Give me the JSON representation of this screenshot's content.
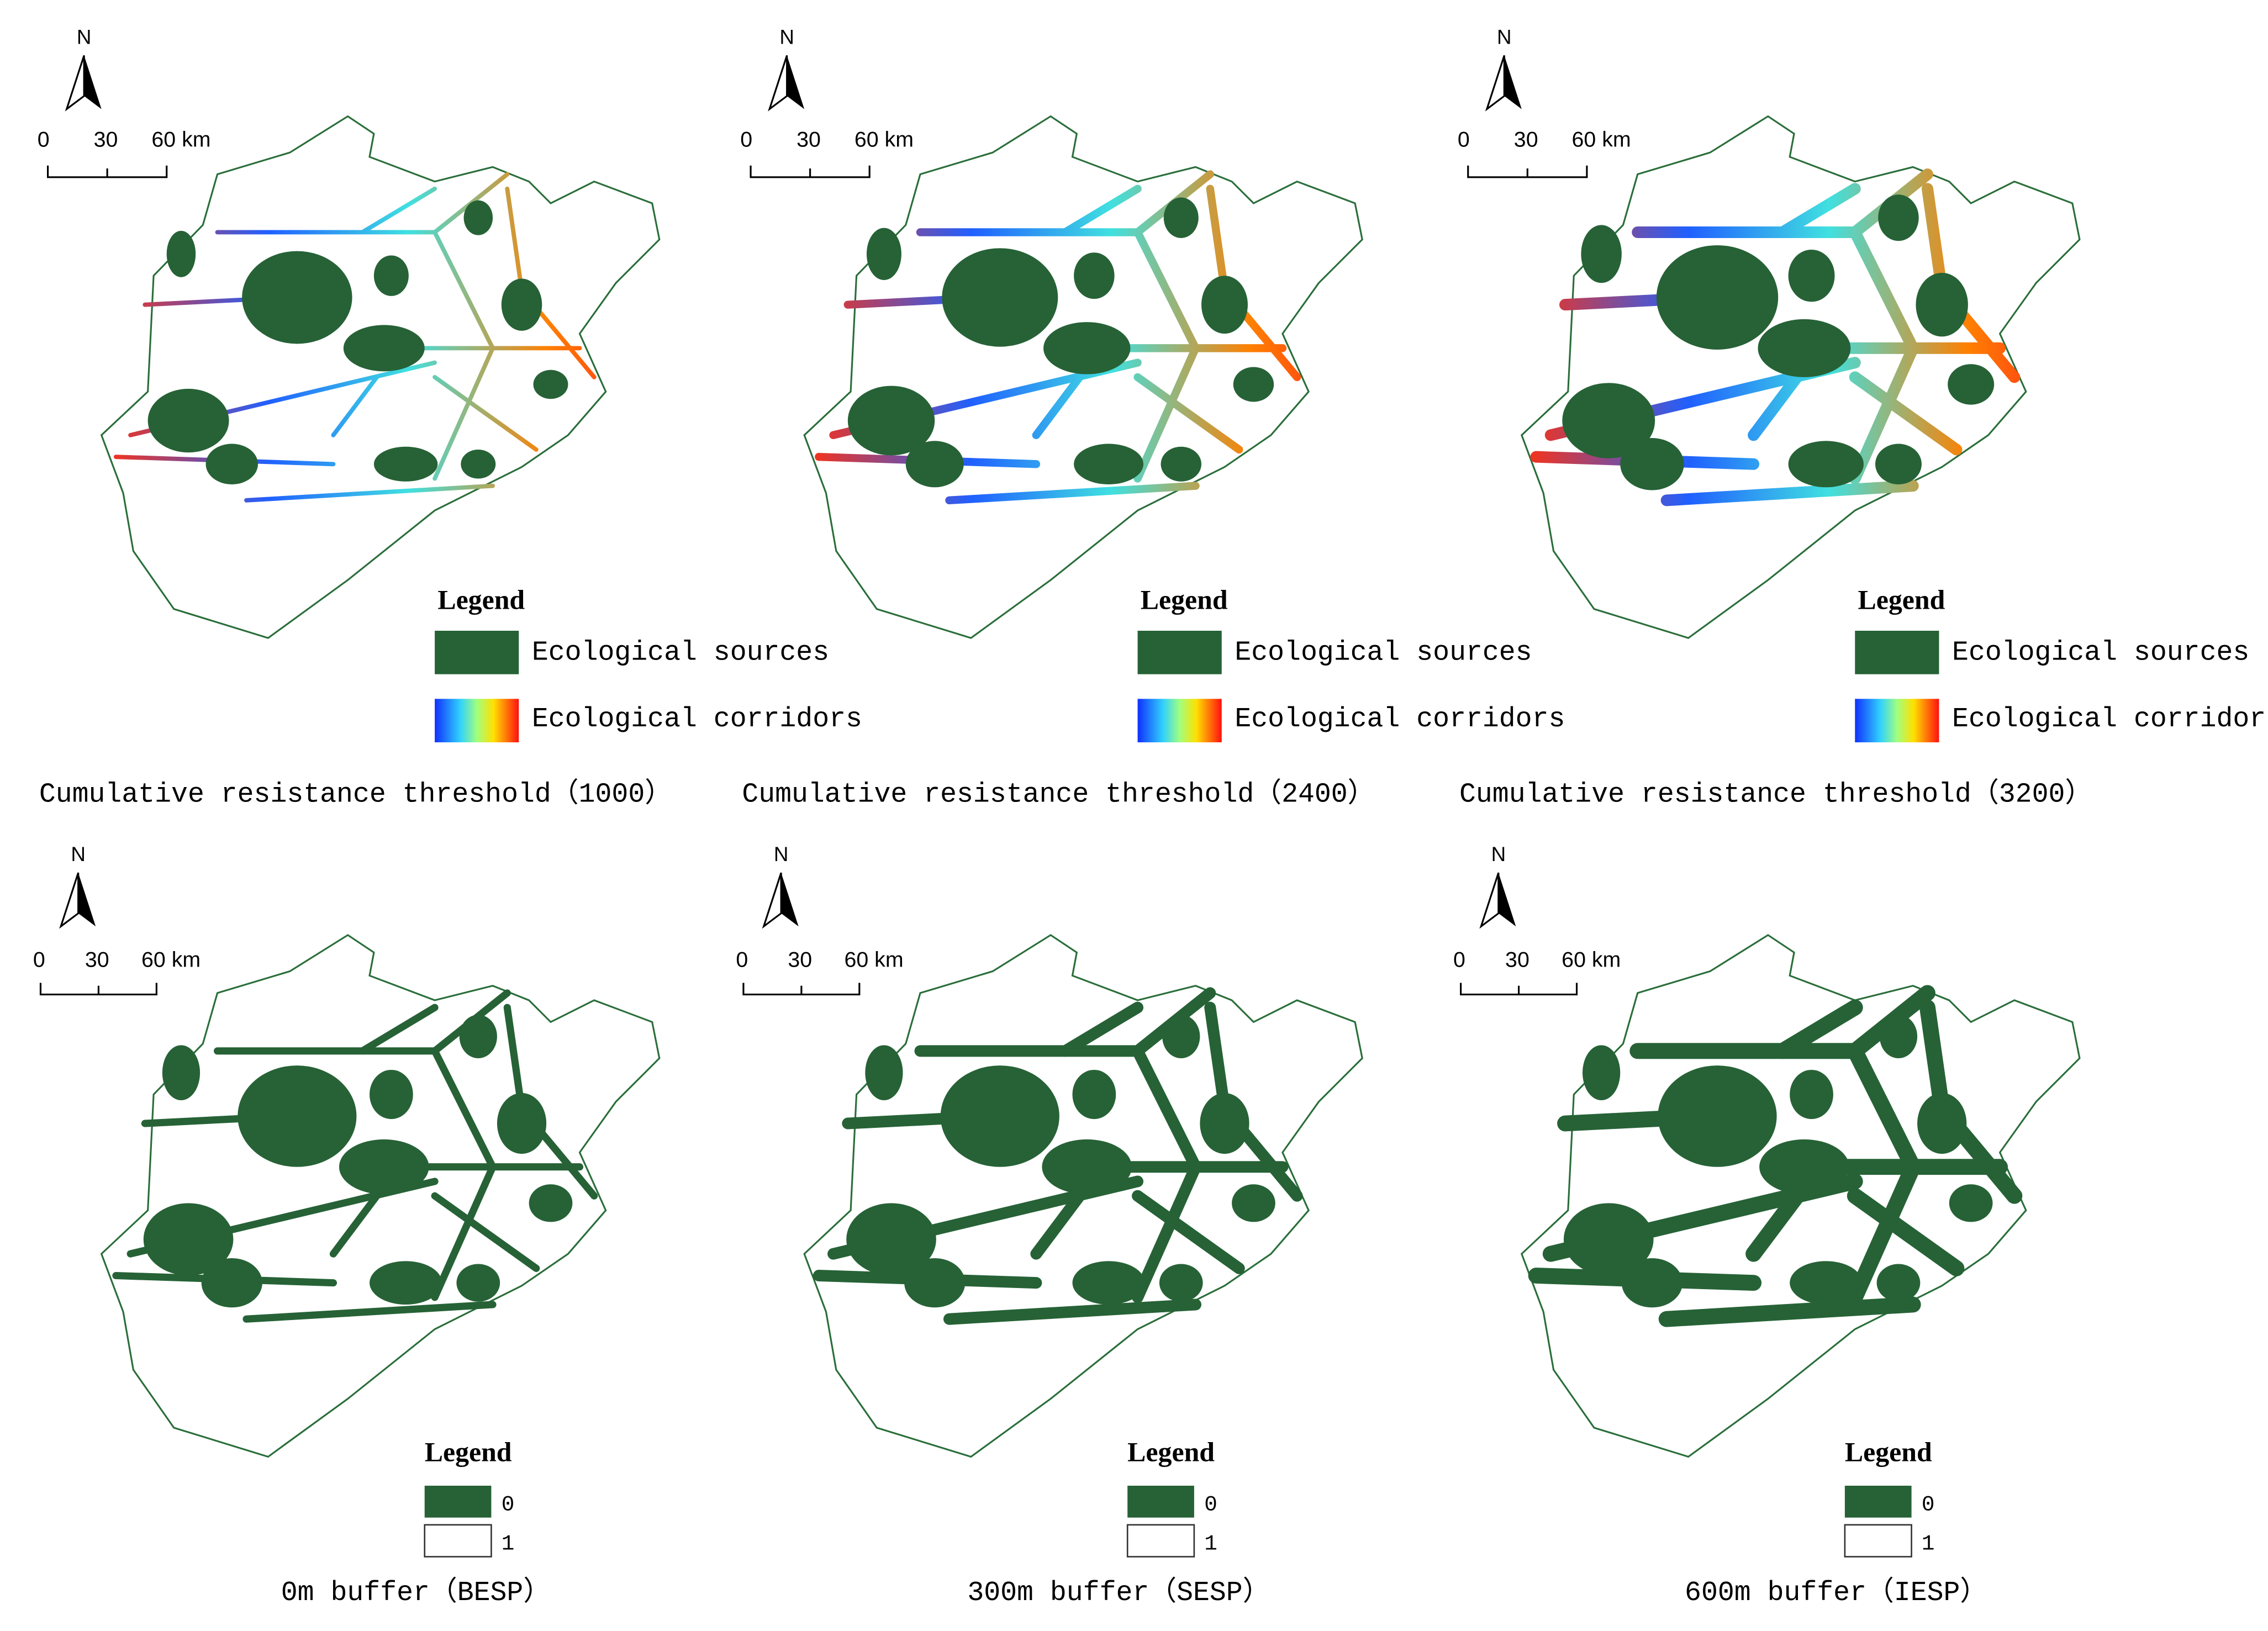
{
  "panels": [
    {
      "north": "N",
      "scale": [
        "0",
        "30",
        "60 km"
      ],
      "legend": {
        "title": "Legend",
        "items": [
          "Ecological sources",
          "Ecological corridors"
        ]
      },
      "caption": "Cumulative resistance threshold（1000）"
    },
    {
      "north": "N",
      "scale": [
        "0",
        "30",
        "60 km"
      ],
      "legend": {
        "title": "Legend",
        "items": [
          "Ecological sources",
          "Ecological corridors"
        ]
      },
      "caption": "Cumulative resistance threshold（2400）"
    },
    {
      "north": "N",
      "scale": [
        "0",
        "30",
        "60 km"
      ],
      "legend": {
        "title": "Legend",
        "items": [
          "Ecological sources",
          "Ecological corridors"
        ]
      },
      "caption": "Cumulative resistance threshold（3200）"
    },
    {
      "north": "N",
      "scale": [
        "0",
        "30",
        "60 km"
      ],
      "legend": {
        "title": "Legend",
        "items": [
          "0",
          "1"
        ]
      },
      "caption": "0m buffer（BESP）"
    },
    {
      "north": "N",
      "scale": [
        "0",
        "30",
        "60 km"
      ],
      "legend": {
        "title": "Legend",
        "items": [
          "0",
          "1"
        ]
      },
      "caption": "300m buffer（SESP）"
    },
    {
      "north": "N",
      "scale": [
        "0",
        "30",
        "60 km"
      ],
      "legend": {
        "title": "Legend",
        "items": [
          "0",
          "1"
        ]
      },
      "caption": "600m buffer（IESP）"
    }
  ]
}
